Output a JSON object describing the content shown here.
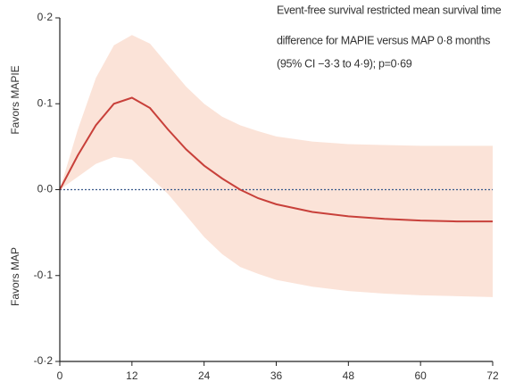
{
  "chart_data": {
    "type": "line",
    "annotation": [
      "Event-free survival restricted mean survival time",
      "difference for MAPIE versus MAP 0·8 months",
      "(95% CI −3·3 to 4·9); p=0·69"
    ],
    "y_label_upper": "Favors MAPIE",
    "y_label_lower": "Favors MAP",
    "x": [
      0,
      3,
      6,
      9,
      12,
      15,
      18,
      21,
      24,
      27,
      30,
      33,
      36,
      42,
      48,
      54,
      60,
      66,
      72
    ],
    "values": [
      0,
      0.04,
      0.075,
      0.1,
      0.107,
      0.095,
      0.07,
      0.047,
      0.028,
      0.013,
      0,
      -0.01,
      -0.017,
      -0.026,
      -0.031,
      -0.034,
      -0.036,
      -0.037,
      -0.037
    ],
    "color": "#c8403a",
    "band": {
      "color": "#fbe3d8",
      "upper": [
        0,
        0.07,
        0.13,
        0.168,
        0.18,
        0.17,
        0.145,
        0.12,
        0.1,
        0.085,
        0.075,
        0.068,
        0.062,
        0.056,
        0.053,
        0.052,
        0.051,
        0.051,
        0.051
      ],
      "lower": [
        0,
        0.015,
        0.03,
        0.038,
        0.035,
        0.015,
        -0.005,
        -0.03,
        -0.055,
        -0.075,
        -0.09,
        -0.098,
        -0.105,
        -0.113,
        -0.118,
        -0.121,
        -0.123,
        -0.124,
        -0.125
      ]
    },
    "reference_color": "#3a5a8c",
    "xlim": [
      0,
      72
    ],
    "xticks": [
      0,
      12,
      24,
      36,
      48,
      60,
      72
    ],
    "ylim": [
      -0.2,
      0.2
    ],
    "yticks": [
      {
        "value": 0.2,
        "label": "0·2"
      },
      {
        "value": 0.1,
        "label": "0·1"
      },
      {
        "value": 0,
        "label": "0·0"
      },
      {
        "value": -0.1,
        "label": "-0·1"
      },
      {
        "value": -0.2,
        "label": "-0·2"
      }
    ],
    "grid": false
  }
}
